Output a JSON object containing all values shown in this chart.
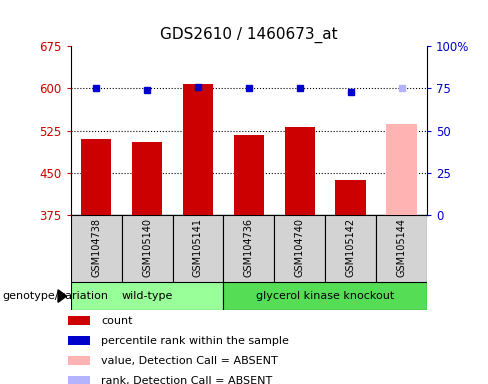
{
  "title": "GDS2610 / 1460673_at",
  "samples": [
    "GSM104738",
    "GSM105140",
    "GSM105141",
    "GSM104736",
    "GSM104740",
    "GSM105142",
    "GSM105144"
  ],
  "bar_values": [
    510,
    505,
    607,
    518,
    532,
    438,
    537
  ],
  "bar_colors": [
    "#cc0000",
    "#cc0000",
    "#cc0000",
    "#cc0000",
    "#cc0000",
    "#cc0000",
    "#ffb3b3"
  ],
  "dot_values": [
    75,
    74,
    76,
    75,
    75,
    73,
    75
  ],
  "dot_colors": [
    "#0000cc",
    "#0000cc",
    "#0000cc",
    "#0000cc",
    "#0000cc",
    "#0000cc",
    "#b3b3ff"
  ],
  "ylim_left": [
    375,
    675
  ],
  "ylim_right": [
    0,
    100
  ],
  "yticks_left": [
    375,
    450,
    525,
    600,
    675
  ],
  "yticks_right": [
    0,
    25,
    50,
    75,
    100
  ],
  "hlines": [
    450,
    525,
    600
  ],
  "group_labels": [
    "wild-type",
    "glycerol kinase knockout"
  ],
  "group_colors": [
    "#99ff99",
    "#33cc33"
  ],
  "genotype_label": "genotype/variation",
  "legend_items": [
    {
      "label": "count",
      "color": "#cc0000"
    },
    {
      "label": "percentile rank within the sample",
      "color": "#0000cc"
    },
    {
      "label": "value, Detection Call = ABSENT",
      "color": "#ffb3b3"
    },
    {
      "label": "rank, Detection Call = ABSENT",
      "color": "#b3b3ff"
    }
  ],
  "background_color": "#ffffff",
  "tick_label_color_left": "#cc0000",
  "tick_label_color_right": "#0000cc",
  "title_fontsize": 11,
  "tick_fontsize": 8.5,
  "legend_fontsize": 8
}
